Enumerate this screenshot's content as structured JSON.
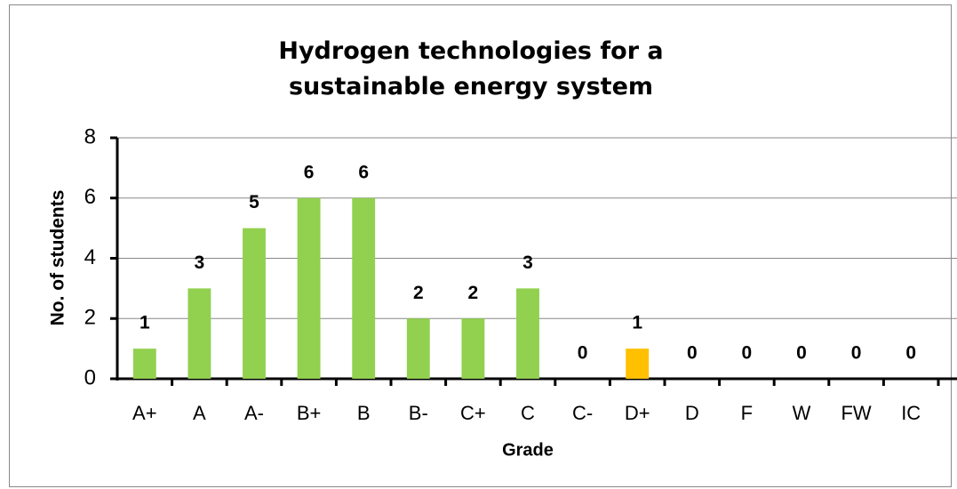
{
  "chart_data": {
    "type": "bar",
    "title": "Hydrogen technologies for a sustainable energy system",
    "x_label": "Grade",
    "y_label": "No. of students",
    "categories": [
      "A+",
      "A",
      "A-",
      "B+",
      "B",
      "B-",
      "C+",
      "C",
      "C-",
      "D+",
      "D",
      "F",
      "W",
      "FW",
      "IC"
    ],
    "values": [
      1,
      3,
      5,
      6,
      6,
      2,
      2,
      3,
      0,
      1,
      0,
      0,
      0,
      0,
      0
    ],
    "colors": [
      "#92d050",
      "#92d050",
      "#92d050",
      "#92d050",
      "#92d050",
      "#92d050",
      "#92d050",
      "#92d050",
      "#92d050",
      "#ffc000",
      "#92d050",
      "#92d050",
      "#92d050",
      "#92d050",
      "#92d050"
    ],
    "ylim": [
      0,
      8
    ],
    "yticks": [
      0,
      2,
      4,
      6,
      8
    ],
    "grid": true
  }
}
